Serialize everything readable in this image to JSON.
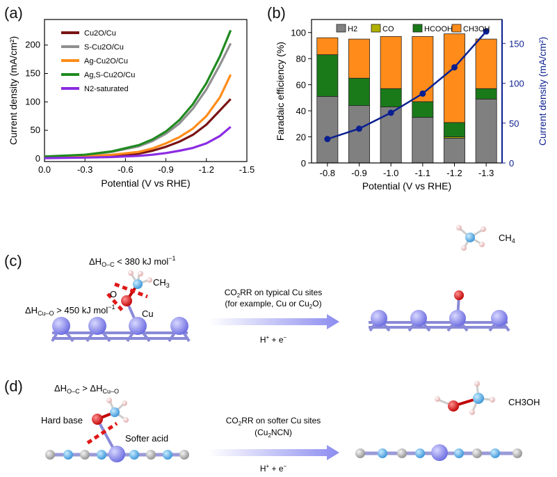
{
  "panels": {
    "a": {
      "label": "(a)"
    },
    "b": {
      "label": "(b)"
    },
    "c": {
      "label": "(c)",
      "energy_oc": "ΔH",
      "energy_oc_sub": "O–C",
      "energy_oc_value": " < 380 kJ mol",
      "energy_cuo": "ΔH",
      "energy_cuo_sub": "Cu–O",
      "energy_cuo_value": " > 450 kJ mol",
      "neg1": "−1",
      "atom_o": "O",
      "atom_cu": "Cu",
      "ch3_main": "CH",
      "ch3_sub": "3",
      "arrow_top1_a": "CO",
      "arrow_top1_sub": "2",
      "arrow_top1_b": "RR on typical Cu sites",
      "arrow_top2_a": "(for example, Cu or Cu",
      "arrow_top2_sub": "2",
      "arrow_top2_b": "O)",
      "arrow_bottom_a": "H",
      "arrow_bottom_sup1": "+",
      "arrow_bottom_b": " + e",
      "arrow_bottom_sup2": "−",
      "product_main": "CH",
      "product_sub": "4"
    },
    "d": {
      "label": "(d)",
      "energy_a": "ΔH",
      "energy_a_sub": "O–C",
      "energy_mid": " > ΔH",
      "energy_b_sub": "Cu–O",
      "hard_base": "Hard base",
      "softer_acid": "Softer acid",
      "arrow_top1_a": "CO",
      "arrow_top1_sub": "2",
      "arrow_top1_b": "RR on softer Cu sites",
      "arrow_top2_a": "(Cu",
      "arrow_top2_sub": "2",
      "arrow_top2_b": "NCN)",
      "arrow_bottom_a": "H",
      "arrow_bottom_sup1": "+",
      "arrow_bottom_b": " + e",
      "arrow_bottom_sup2": "−",
      "product": "CH3OH"
    }
  },
  "chart_data": [
    {
      "type": "line",
      "xlabel": "Potential (V vs RHE)",
      "ylabel": "Current density (mA/cm²)",
      "xlim": [
        0.0,
        -1.5
      ],
      "ylim": [
        -5,
        245
      ],
      "xticks": [
        "0.0",
        "-0.3",
        "-0.6",
        "-0.9",
        "-1.2",
        "-1.5"
      ],
      "yticks": [
        "0",
        "50",
        "100",
        "150",
        "200"
      ],
      "legend_position": "top-left",
      "series": [
        {
          "name": "Cu2O/Cu",
          "color": "#7a1414",
          "x": [
            0,
            -0.3,
            -0.5,
            -0.7,
            -0.8,
            -0.9,
            -1.0,
            -1.1,
            -1.2,
            -1.3,
            -1.38
          ],
          "y": [
            2,
            3,
            5,
            9,
            14,
            21,
            30,
            42,
            60,
            85,
            105
          ]
        },
        {
          "name": "S-Cu2O/Cu",
          "color": "#8f8f8f",
          "x": [
            0,
            -0.3,
            -0.5,
            -0.7,
            -0.8,
            -0.9,
            -1.0,
            -1.1,
            -1.2,
            -1.3,
            -1.38
          ],
          "y": [
            3,
            6,
            12,
            22,
            31,
            44,
            62,
            88,
            122,
            165,
            203
          ]
        },
        {
          "name": "Ag-Cu2O/Cu",
          "color": "#ff8c1a",
          "x": [
            0,
            -0.3,
            -0.5,
            -0.7,
            -0.8,
            -0.9,
            -1.0,
            -1.1,
            -1.2,
            -1.3,
            -1.38
          ],
          "y": [
            2,
            4,
            7,
            12,
            18,
            27,
            38,
            53,
            75,
            108,
            148
          ]
        },
        {
          "name": "Ag,S-Cu2O/Cu",
          "color": "#1e8a1e",
          "x": [
            0,
            -0.3,
            -0.5,
            -0.7,
            -0.8,
            -0.9,
            -1.0,
            -1.1,
            -1.2,
            -1.3,
            -1.38
          ],
          "y": [
            4,
            7,
            13,
            24,
            34,
            48,
            68,
            96,
            133,
            180,
            226
          ]
        },
        {
          "name": "N2-saturated",
          "color": "#8a2be2",
          "x": [
            0,
            -0.3,
            -0.5,
            -0.7,
            -0.8,
            -0.9,
            -1.0,
            -1.1,
            -1.2,
            -1.3,
            -1.38
          ],
          "y": [
            1,
            2,
            3,
            5,
            7,
            10,
            14,
            19,
            27,
            40,
            56
          ]
        }
      ]
    },
    {
      "type": "bar",
      "stacked": true,
      "xlabel": "Potential (V vs RHE)",
      "ylabel": "Faradaic efficiency (%)",
      "y2label": "Current density (mA/cm²)",
      "categories": [
        "-0.8",
        "-0.9",
        "-1.0",
        "-1.1",
        "-1.2",
        "-1.3"
      ],
      "ylim": [
        0,
        110
      ],
      "y2lim": [
        0,
        180
      ],
      "yticks": [
        "0",
        "20",
        "40",
        "60",
        "80",
        "100"
      ],
      "y2ticks": [
        "0",
        "50",
        "100",
        "150"
      ],
      "legend_position": "top",
      "series": [
        {
          "name": "H2",
          "color": "#808080",
          "values": [
            51,
            44,
            43,
            35,
            19,
            49
          ]
        },
        {
          "name": "CO",
          "color": "#b0b000",
          "values": [
            0,
            0,
            0,
            0,
            1,
            0
          ]
        },
        {
          "name": "HCOOH",
          "color": "#1a7a1a",
          "values": [
            32,
            21,
            14,
            12,
            11,
            8
          ]
        },
        {
          "name": "CH3OH",
          "color": "#ff8c1a",
          "values": [
            13,
            30,
            40,
            50,
            68,
            38
          ]
        }
      ],
      "line_series": {
        "color": "#0a1f8f",
        "values": [
          30,
          43,
          63,
          87,
          120,
          165
        ]
      }
    }
  ],
  "colors": {
    "copper": "#8c8cf0",
    "oxygen": "#e01818",
    "carbon": "#5aaee8",
    "hydrogen": "#f0c8c8",
    "gray_atom": "#b8b8b8",
    "bond": "#8080d8",
    "break_line": "#e01818"
  }
}
